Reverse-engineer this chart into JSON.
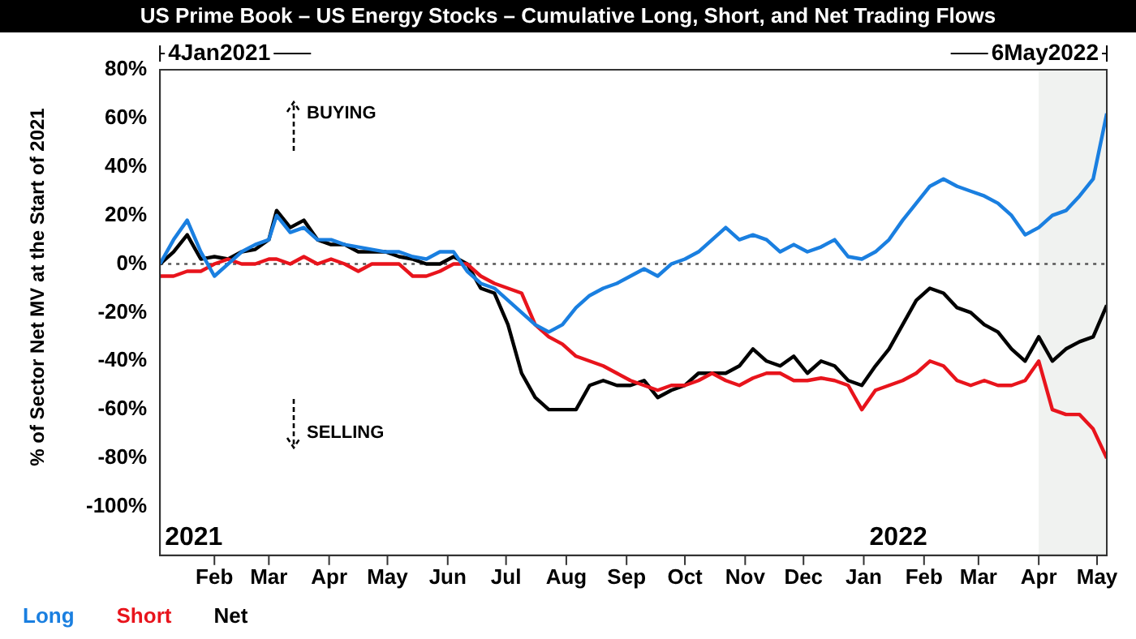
{
  "chart_data": {
    "type": "line",
    "title": "US Prime Book – US Energy Stocks – Cumulative Long, Short, and Net Trading Flows",
    "ylabel": "% of Sector Net MV at the Start of 2021",
    "x": [
      "2021-01-04",
      "2021-01-11",
      "2021-01-18",
      "2021-01-25",
      "2021-02-01",
      "2021-02-08",
      "2021-02-15",
      "2021-02-22",
      "2021-03-01",
      "2021-03-05",
      "2021-03-12",
      "2021-03-19",
      "2021-03-26",
      "2021-04-02",
      "2021-04-09",
      "2021-04-16",
      "2021-04-23",
      "2021-04-30",
      "2021-05-07",
      "2021-05-14",
      "2021-05-21",
      "2021-05-28",
      "2021-06-04",
      "2021-06-11",
      "2021-06-18",
      "2021-06-25",
      "2021-07-02",
      "2021-07-09",
      "2021-07-16",
      "2021-07-23",
      "2021-07-30",
      "2021-08-06",
      "2021-08-13",
      "2021-08-20",
      "2021-08-27",
      "2021-09-03",
      "2021-09-10",
      "2021-09-17",
      "2021-09-24",
      "2021-10-01",
      "2021-10-08",
      "2021-10-15",
      "2021-10-22",
      "2021-10-29",
      "2021-11-05",
      "2021-11-12",
      "2021-11-19",
      "2021-11-26",
      "2021-12-03",
      "2021-12-10",
      "2021-12-17",
      "2021-12-24",
      "2021-12-31",
      "2022-01-07",
      "2022-01-14",
      "2022-01-21",
      "2022-01-28",
      "2022-02-04",
      "2022-02-11",
      "2022-02-18",
      "2022-02-25",
      "2022-03-04",
      "2022-03-11",
      "2022-03-18",
      "2022-03-25",
      "2022-04-01",
      "2022-04-08",
      "2022-04-15",
      "2022-04-22",
      "2022-04-29",
      "2022-05-06"
    ],
    "series": [
      {
        "name": "Long",
        "color": "#1a7fe0",
        "values": [
          0,
          10,
          18,
          5,
          -5,
          0,
          5,
          8,
          10,
          20,
          13,
          15,
          10,
          10,
          8,
          7,
          6,
          5,
          5,
          3,
          2,
          5,
          5,
          -3,
          -8,
          -10,
          -15,
          -20,
          -25,
          -28,
          -25,
          -18,
          -13,
          -10,
          -8,
          -5,
          -2,
          -5,
          0,
          2,
          5,
          10,
          15,
          10,
          12,
          10,
          5,
          8,
          5,
          7,
          10,
          3,
          2,
          5,
          10,
          18,
          25,
          32,
          35,
          32,
          30,
          28,
          25,
          20,
          12,
          15,
          20,
          22,
          28,
          35,
          62
        ]
      },
      {
        "name": "Short",
        "color": "#e8141c",
        "values": [
          -5,
          -5,
          -3,
          -3,
          0,
          2,
          0,
          0,
          2,
          2,
          0,
          3,
          0,
          2,
          0,
          -3,
          0,
          0,
          0,
          -5,
          -5,
          -3,
          0,
          0,
          -5,
          -8,
          -10,
          -12,
          -25,
          -30,
          -33,
          -38,
          -40,
          -42,
          -45,
          -48,
          -50,
          -52,
          -50,
          -50,
          -48,
          -45,
          -48,
          -50,
          -47,
          -45,
          -45,
          -48,
          -48,
          -47,
          -48,
          -50,
          -60,
          -52,
          -50,
          -48,
          -45,
          -40,
          -42,
          -48,
          -50,
          -48,
          -50,
          -50,
          -48,
          -40,
          -60,
          -62,
          -62,
          -68,
          -80
        ]
      },
      {
        "name": "Net",
        "color": "#000000",
        "values": [
          0,
          5,
          12,
          2,
          3,
          2,
          5,
          6,
          10,
          22,
          15,
          18,
          10,
          8,
          8,
          5,
          5,
          5,
          3,
          2,
          0,
          0,
          3,
          0,
          -10,
          -12,
          -25,
          -45,
          -55,
          -60,
          -60,
          -60,
          -50,
          -48,
          -50,
          -50,
          -48,
          -55,
          -52,
          -50,
          -45,
          -45,
          -45,
          -42,
          -35,
          -40,
          -42,
          -38,
          -45,
          -40,
          -42,
          -48,
          -50,
          -42,
          -35,
          -25,
          -15,
          -10,
          -12,
          -18,
          -20,
          -25,
          -28,
          -35,
          -40,
          -30,
          -40,
          -35,
          -32,
          -30,
          -17
        ]
      }
    ],
    "xlim": [
      "2021-01-04",
      "2022-05-06"
    ],
    "xticks": [
      {
        "value": "2021-02-01",
        "label": "Feb"
      },
      {
        "value": "2021-03-01",
        "label": "Mar"
      },
      {
        "value": "2021-04-01",
        "label": "Apr"
      },
      {
        "value": "2021-05-01",
        "label": "May"
      },
      {
        "value": "2021-06-01",
        "label": "Jun"
      },
      {
        "value": "2021-07-01",
        "label": "Jul"
      },
      {
        "value": "2021-08-01",
        "label": "Aug"
      },
      {
        "value": "2021-09-01",
        "label": "Sep"
      },
      {
        "value": "2021-10-01",
        "label": "Oct"
      },
      {
        "value": "2021-11-01",
        "label": "Nov"
      },
      {
        "value": "2021-12-01",
        "label": "Dec"
      },
      {
        "value": "2022-01-01",
        "label": "Jan"
      },
      {
        "value": "2022-02-01",
        "label": "Feb"
      },
      {
        "value": "2022-03-01",
        "label": "Mar"
      },
      {
        "value": "2022-04-01",
        "label": "Apr"
      },
      {
        "value": "2022-05-01",
        "label": "May"
      }
    ],
    "ylim": [
      -120,
      80
    ],
    "yticks": [
      {
        "value": 80,
        "label": "80%"
      },
      {
        "value": 60,
        "label": "60%"
      },
      {
        "value": 40,
        "label": "40%"
      },
      {
        "value": 20,
        "label": "20%"
      },
      {
        "value": 0,
        "label": "0%"
      },
      {
        "value": -20,
        "label": "-20%"
      },
      {
        "value": -40,
        "label": "-40%"
      },
      {
        "value": -60,
        "label": "-60%"
      },
      {
        "value": -80,
        "label": "-80%"
      },
      {
        "value": -100,
        "label": "-100%"
      }
    ],
    "ref_lines": [
      {
        "axis": "y",
        "value": 0,
        "color": "#555555",
        "line_style": "dotted"
      }
    ],
    "bands": [
      {
        "axis": "x",
        "from": "2022-04-01",
        "to": "2022-05-06",
        "color": "#f0f2f0"
      }
    ],
    "annotations": [
      "4Jan2021",
      "6May2022",
      "BUYING",
      "SELLING",
      "2021",
      "2022"
    ],
    "legend": "bottom left",
    "grid": false,
    "marker": "none",
    "line_style": "solid"
  }
}
